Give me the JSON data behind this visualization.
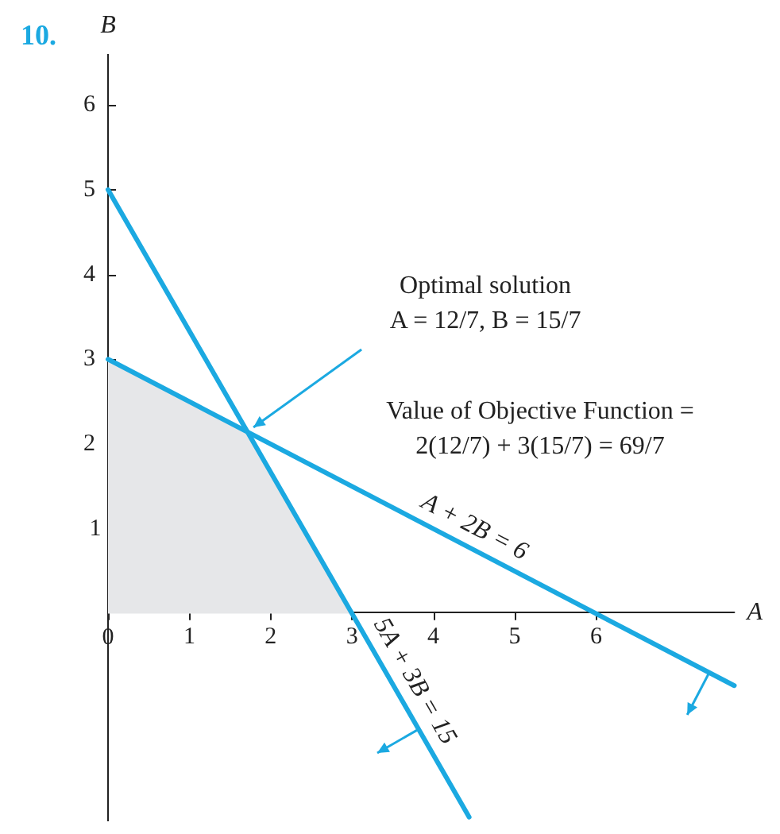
{
  "chart_data": {
    "type": "line",
    "title": "10.",
    "xlabel": "A",
    "ylabel": "B",
    "xlim": [
      0,
      7.7
    ],
    "ylim": [
      -2.45,
      6.6
    ],
    "xticks": [
      0,
      1,
      2,
      3,
      4,
      5,
      6
    ],
    "yticks": [
      1,
      2,
      3,
      4,
      5,
      6
    ],
    "grid": false,
    "marker": "none",
    "line_style": "solid",
    "series": [
      {
        "type": "area",
        "color": "#e6e7e9",
        "x": [
          0,
          1.71,
          3
        ],
        "values": [
          3,
          2.14,
          0
        ]
      },
      {
        "name": "A + 2B = 6",
        "color": "#1ba9e1",
        "x": [
          0,
          7.7
        ],
        "values": [
          3,
          -0.85
        ]
      },
      {
        "name": "5A + 3B = 15",
        "color": "#1ba9e1",
        "x": [
          0,
          4.44
        ],
        "values": [
          5,
          -2.4
        ]
      }
    ],
    "annotations": [
      {
        "text": "Optimal solution\nA = 12/7, B = 15/7",
        "x": 1.71,
        "y": 2.14
      },
      "Value of Objective Function =\n2(12/7) + 3(15/7) = 69/7"
    ]
  }
}
